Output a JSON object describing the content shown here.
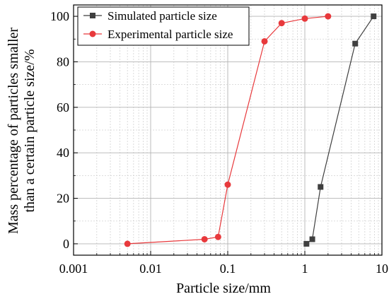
{
  "chart_data": {
    "type": "line",
    "xlabel": "Particle size/mm",
    "ylabel_lines": [
      "Mass percentage of particles smaller",
      "than a certain particle size/%"
    ],
    "x_scale": "log",
    "xlim": [
      0.001,
      10
    ],
    "ylim": [
      -5,
      105
    ],
    "x_ticks": [
      0.001,
      0.01,
      0.1,
      1,
      10
    ],
    "x_tick_labels": [
      "0.001",
      "0.01",
      "0.1",
      "1",
      "10"
    ],
    "y_ticks": [
      0,
      20,
      40,
      60,
      80,
      100
    ],
    "y_tick_labels": [
      "0",
      "20",
      "40",
      "60",
      "80",
      "100"
    ],
    "grid": true,
    "legend_position": "top-left",
    "series": [
      {
        "name": "Simulated particle size",
        "color": "#3f3f3f",
        "marker": "square",
        "x": [
          1.05,
          1.25,
          1.6,
          4.5,
          7.8
        ],
        "y": [
          0,
          2,
          25,
          88,
          100
        ]
      },
      {
        "name": "Experimental particle size",
        "color": "#e8393c",
        "marker": "circle",
        "x": [
          0.005,
          0.05,
          0.075,
          0.1,
          0.3,
          0.5,
          1.0,
          2.0
        ],
        "y": [
          0,
          2,
          3,
          26,
          89,
          97,
          99,
          100
        ]
      }
    ]
  }
}
